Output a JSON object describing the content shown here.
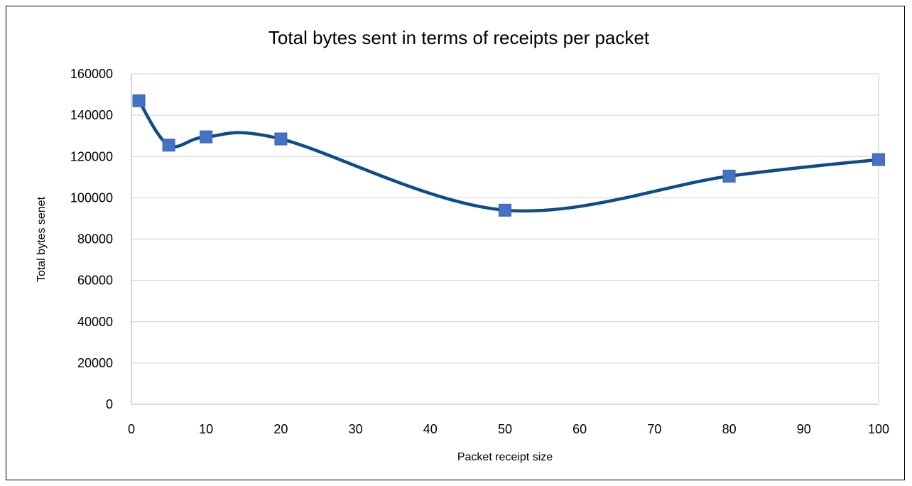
{
  "chart_data": {
    "type": "line",
    "title": "Total bytes sent in terms of receipts per packet",
    "xlabel": "Packet receipt size",
    "ylabel": "Total bytes senet",
    "x": [
      1,
      5,
      10,
      20,
      50,
      80,
      100
    ],
    "series": [
      {
        "values": [
          147000,
          125500,
          129500,
          128500,
          94000,
          110500,
          118500
        ]
      }
    ],
    "xlim": [
      0,
      100
    ],
    "ylim": [
      0,
      160000
    ],
    "xticks": [
      "0",
      "10",
      "20",
      "30",
      "40",
      "50",
      "60",
      "70",
      "80",
      "90",
      "100"
    ],
    "yticks": [
      "0",
      "20000",
      "40000",
      "60000",
      "80000",
      "100000",
      "120000",
      "140000",
      "160000"
    ],
    "grid": "horizontal",
    "smooth": true,
    "marker": "square",
    "colors": {
      "line": "#0f4c8a",
      "marker": "#4472c4",
      "grid": "#d9d9d9",
      "axis": "#bfbfbf"
    }
  }
}
